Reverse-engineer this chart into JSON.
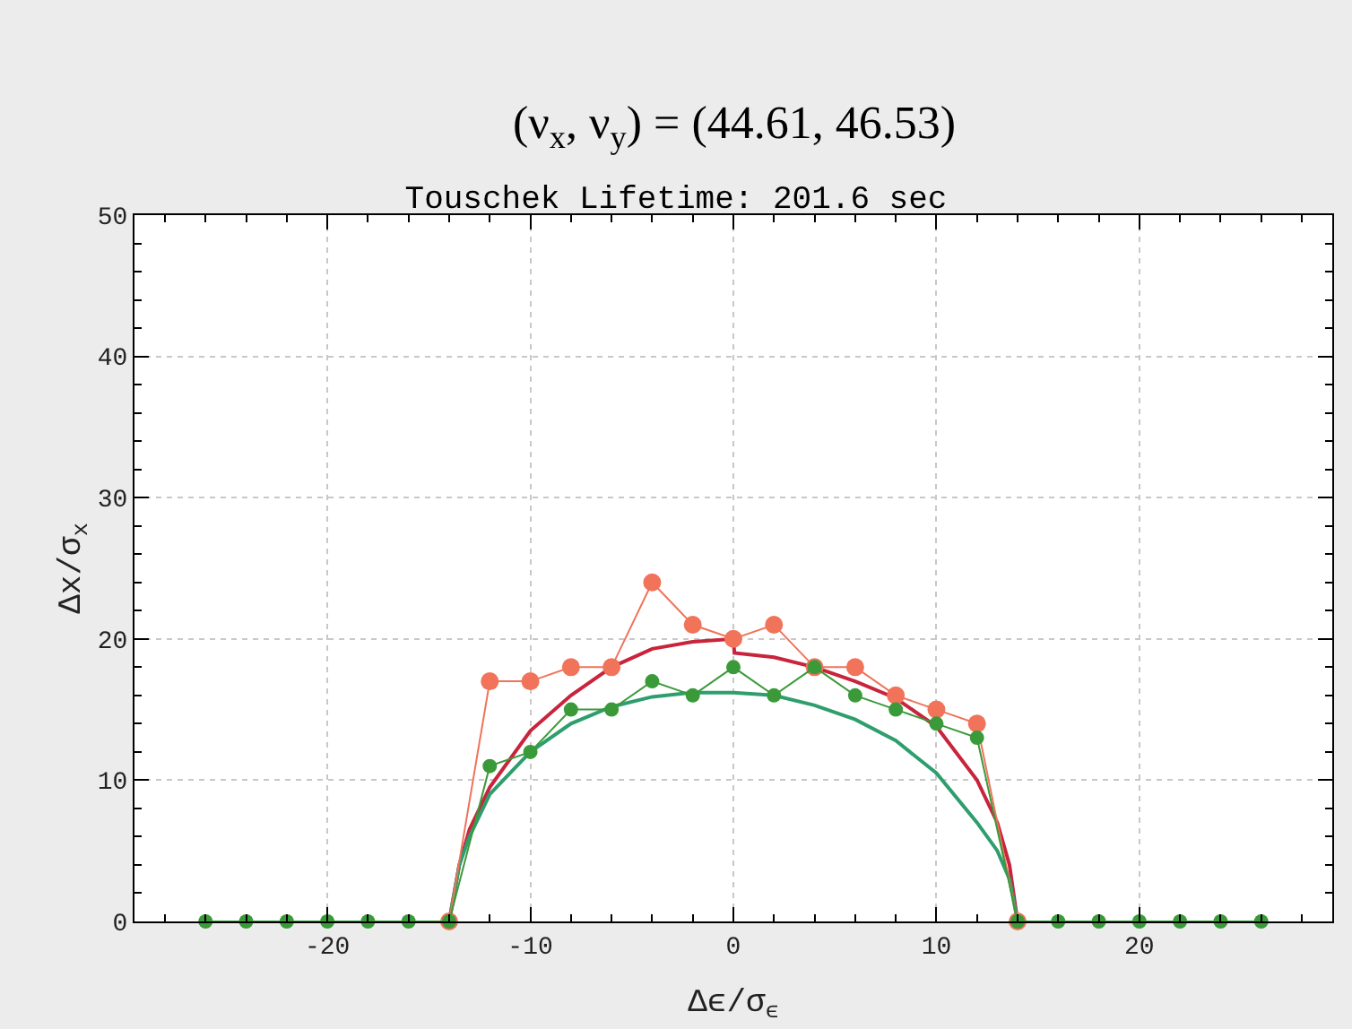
{
  "chart_data": {
    "type": "line",
    "title": "Touschek Lifetime: 201.6 sec",
    "xlabel": "Δϵ/σ$_{ϵ}$",
    "ylabel": "Δx/σ$_{x}$",
    "annotations": [
      "(ν$_{x}$, ν$_{y}$) = (44.61, 46.53)"
    ],
    "xlim": [
      -29.5,
      29.5
    ],
    "xticks": [
      -20,
      -10,
      0,
      10,
      20
    ],
    "ylim": [
      0,
      50
    ],
    "yticks": [
      0,
      10,
      20,
      30,
      40,
      50
    ],
    "grid": true,
    "legend": false,
    "line_style": "solid",
    "series": [
      {
        "color": "#c8243c",
        "marker": "none",
        "x": [
          -14,
          -13.5,
          -13,
          -12,
          -10,
          -8,
          -6,
          -4,
          -2,
          0,
          0.05,
          2,
          4,
          6,
          8,
          10,
          12,
          13,
          13.6,
          14
        ],
        "values": [
          0,
          4,
          6.5,
          9.5,
          13.5,
          16,
          18,
          19.3,
          19.8,
          20,
          19,
          18.7,
          18,
          17,
          15.8,
          13.8,
          10,
          7,
          4,
          0
        ]
      },
      {
        "color": "#2e9e6e",
        "marker": "none",
        "x": [
          -14,
          -13.5,
          -13,
          -12,
          -10,
          -8,
          -6,
          -4,
          -2,
          0,
          2,
          4,
          6,
          8,
          10,
          12,
          13,
          13.6,
          14
        ],
        "values": [
          0,
          4,
          6,
          9,
          12,
          14,
          15.2,
          15.9,
          16.2,
          16.2,
          16,
          15.3,
          14.3,
          12.8,
          10.5,
          7,
          5,
          3,
          0
        ]
      },
      {
        "color": "#f0735a",
        "marker": "circle",
        "x": [
          -14,
          -12,
          -10,
          -8,
          -6,
          -4,
          -2,
          0,
          2,
          4,
          6,
          8,
          10,
          12,
          14
        ],
        "values": [
          0,
          17,
          17,
          18,
          18,
          24,
          21,
          20,
          21,
          18,
          18,
          16,
          15,
          14,
          0
        ]
      },
      {
        "color": "#3a9a3a",
        "marker": "circle",
        "x": [
          -26,
          -24,
          -22,
          -20,
          -18,
          -16,
          -14,
          -12,
          -10,
          -8,
          -6,
          -4,
          -2,
          0,
          2,
          4,
          6,
          8,
          10,
          12,
          14,
          16,
          18,
          20,
          22,
          24,
          26
        ],
        "values": [
          0,
          0,
          0,
          0,
          0,
          0,
          0,
          11,
          12,
          15,
          15,
          17,
          16,
          18,
          16,
          18,
          16,
          15,
          14,
          13,
          0,
          0,
          0,
          0,
          0,
          0,
          0
        ]
      }
    ]
  }
}
